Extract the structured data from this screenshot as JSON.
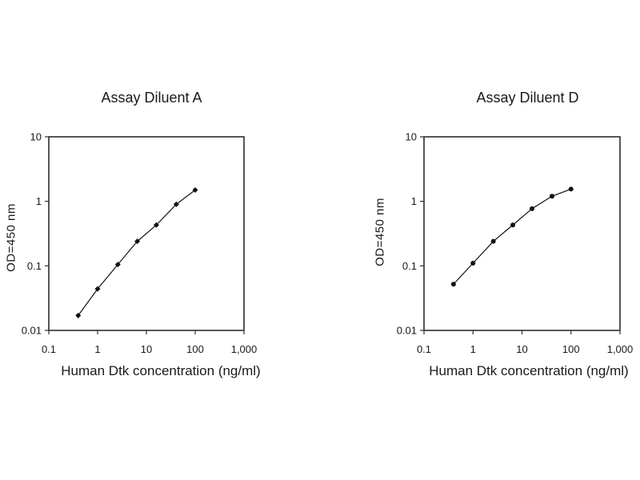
{
  "figure": {
    "background": "#ffffff",
    "text_color": "#1a1a1a",
    "line_color": "#000000"
  },
  "chart_data": [
    {
      "type": "line",
      "title": "Assay Diluent A",
      "xlabel": "Human Dtk concentration (ng/ml)",
      "ylabel": "OD=450 nm",
      "xscale": "log",
      "yscale": "log",
      "xlim": [
        0.1,
        1000
      ],
      "ylim": [
        0.01,
        10
      ],
      "x_tick_labels": [
        "0.1",
        "1",
        "10",
        "100",
        "1,000"
      ],
      "y_tick_labels": [
        "0.01",
        "0.1",
        "1",
        "10"
      ],
      "x": [
        0.4,
        1,
        2.6,
        6.5,
        16,
        41,
        100
      ],
      "y": [
        0.017,
        0.044,
        0.105,
        0.24,
        0.43,
        0.9,
        1.5
      ],
      "marker": "diamond",
      "grid": false,
      "series_color": "#000000"
    },
    {
      "type": "line",
      "title": "Assay Diluent D",
      "xlabel": "Human Dtk concentration (ng/ml)",
      "ylabel": "OD=450 nm",
      "xscale": "log",
      "yscale": "log",
      "xlim": [
        0.1,
        1000
      ],
      "ylim": [
        0.01,
        10
      ],
      "x_tick_labels": [
        "0.1",
        "1",
        "10",
        "100",
        "1,000"
      ],
      "y_tick_labels": [
        "0.01",
        "0.1",
        "1",
        "10"
      ],
      "x": [
        0.4,
        1,
        2.6,
        6.5,
        16,
        41,
        100
      ],
      "y": [
        0.052,
        0.11,
        0.24,
        0.43,
        0.77,
        1.2,
        1.55
      ],
      "marker": "circle",
      "grid": false,
      "series_color": "#000000"
    }
  ]
}
